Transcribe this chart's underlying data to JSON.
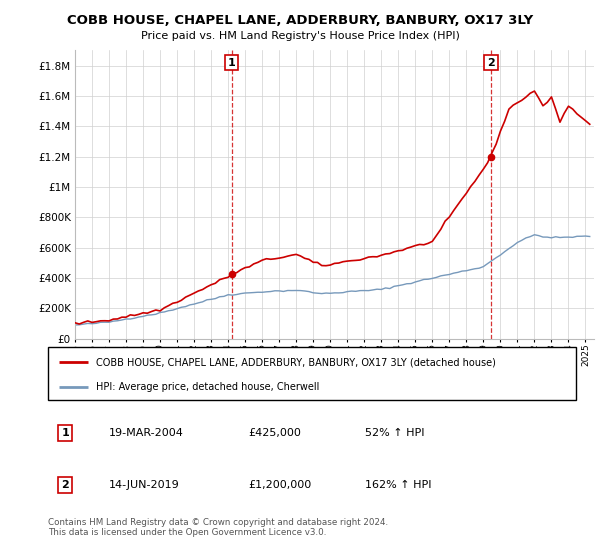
{
  "title": "COBB HOUSE, CHAPEL LANE, ADDERBURY, BANBURY, OX17 3LY",
  "subtitle": "Price paid vs. HM Land Registry's House Price Index (HPI)",
  "legend_line1": "COBB HOUSE, CHAPEL LANE, ADDERBURY, BANBURY, OX17 3LY (detached house)",
  "legend_line2": "HPI: Average price, detached house, Cherwell",
  "annotation1_label": "1",
  "annotation1_date": "19-MAR-2004",
  "annotation1_price": "£425,000",
  "annotation1_hpi": "52% ↑ HPI",
  "annotation2_label": "2",
  "annotation2_date": "14-JUN-2019",
  "annotation2_price": "£1,200,000",
  "annotation2_hpi": "162% ↑ HPI",
  "footnote": "Contains HM Land Registry data © Crown copyright and database right 2024.\nThis data is licensed under the Open Government Licence v3.0.",
  "sale1_year": 2004.21,
  "sale1_value": 425000,
  "sale2_year": 2019.45,
  "sale2_value": 1200000,
  "red_line_color": "#cc0000",
  "blue_line_color": "#7799bb",
  "background_color": "#ffffff",
  "ylim_min": 0,
  "ylim_max": 1900000,
  "xlim_min": 1995,
  "xlim_max": 2025.5,
  "yticks": [
    0,
    200000,
    400000,
    600000,
    800000,
    1000000,
    1200000,
    1400000,
    1600000,
    1800000
  ]
}
